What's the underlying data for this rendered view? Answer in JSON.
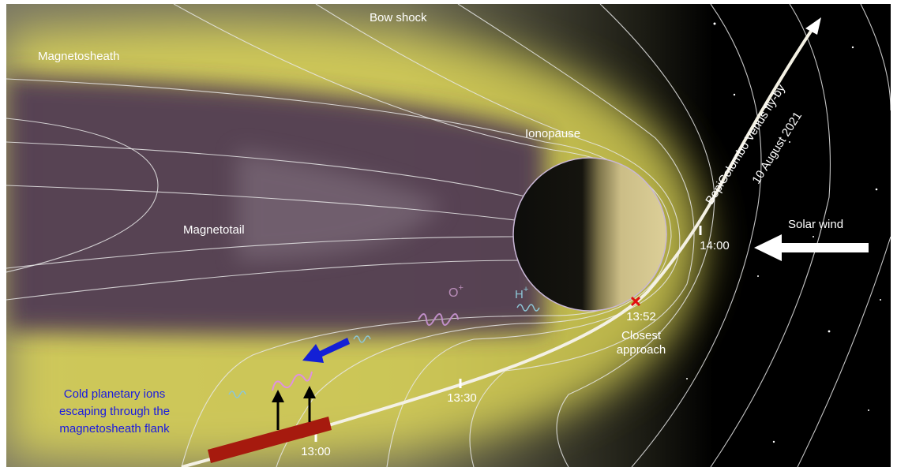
{
  "labels": {
    "bow_shock": "Bow shock",
    "magnetosheath": "Magnetosheath",
    "ionopause": "Ionopause",
    "magnetotail": "Magnetotail",
    "solar_wind": "Solar wind",
    "flyby": "BepiColombo Venus fly-by",
    "date": "10 August 2021",
    "ion_o": {
      "symbol": "O",
      "charge": "+"
    },
    "ion_h": {
      "symbol": "H",
      "charge": "+"
    },
    "closest_approach": [
      "Closest",
      "approach"
    ],
    "escape_note": [
      "Cold planetary ions",
      "escaping through the",
      "magnetosheath flank"
    ]
  },
  "trajectory_times": [
    "13:00",
    "13:30",
    "13:52",
    "14:00"
  ]
}
